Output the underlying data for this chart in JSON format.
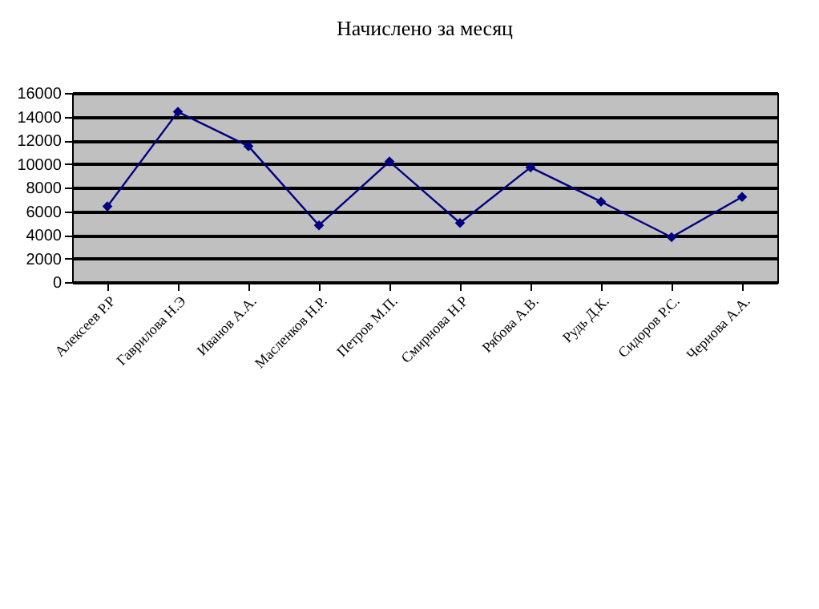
{
  "chart_data": {
    "type": "line",
    "title": "Начислено за месяц",
    "categories": [
      "Алексеев Р.Р",
      "Гаврилова Н.Э",
      "Иванов А.А.",
      "Масленков Н.Р.",
      "Петров М.П.",
      "Смирнова Н.Р",
      "Рябова А.В.",
      "Рудь Д.К.",
      "Сидоров Р.С.",
      "Чернова А.А."
    ],
    "series": [
      {
        "color": "#000080",
        "values": [
          6400,
          14400,
          11500,
          4800,
          10200,
          5000,
          9700,
          6800,
          3800,
          7200
        ]
      }
    ],
    "ylim": [
      0,
      16000
    ],
    "yticks": [
      0,
      2000,
      4000,
      6000,
      8000,
      10000,
      12000,
      14000,
      16000
    ],
    "grid": "y",
    "marker": "diamond",
    "line_style": "solid"
  }
}
